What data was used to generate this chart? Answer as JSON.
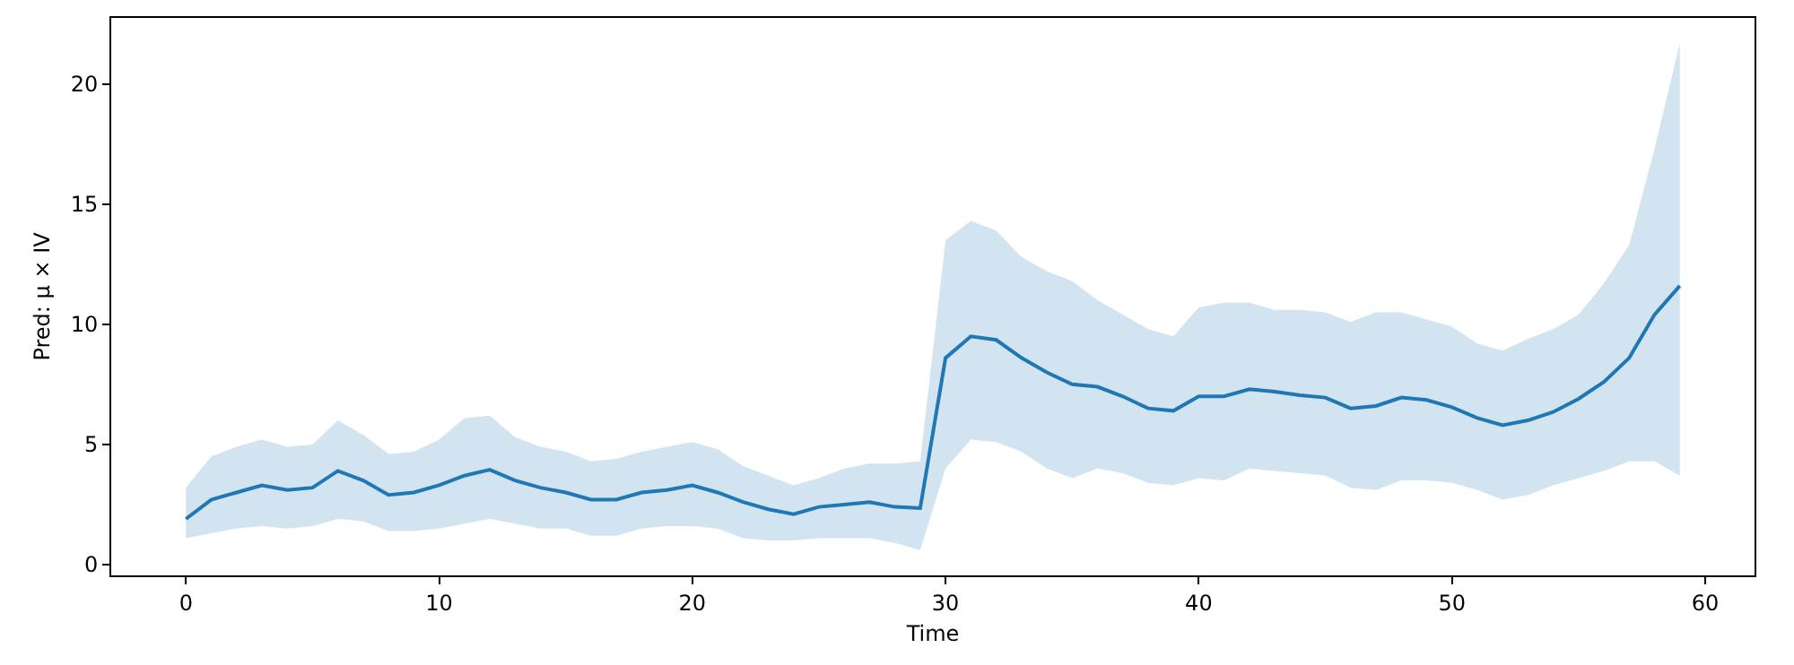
{
  "chart_data": {
    "type": "line",
    "xlabel": "Time",
    "ylabel": "Pred: µ × IV",
    "x": [
      0,
      1,
      2,
      3,
      4,
      5,
      6,
      7,
      8,
      9,
      10,
      11,
      12,
      13,
      14,
      15,
      16,
      17,
      18,
      19,
      20,
      21,
      22,
      23,
      24,
      25,
      26,
      27,
      28,
      29,
      30,
      31,
      32,
      33,
      34,
      35,
      36,
      37,
      38,
      39,
      40,
      41,
      42,
      43,
      44,
      45,
      46,
      47,
      48,
      49,
      50,
      51,
      52,
      53,
      54,
      55,
      56,
      57,
      58,
      59
    ],
    "series": [
      {
        "color": "#1f77b4",
        "values": [
          1.9,
          2.7,
          3.0,
          3.3,
          3.1,
          3.2,
          3.9,
          3.5,
          2.9,
          3.0,
          3.3,
          3.7,
          3.95,
          3.5,
          3.2,
          3.0,
          2.7,
          2.7,
          3.0,
          3.1,
          3.3,
          3.0,
          2.6,
          2.3,
          2.1,
          2.4,
          2.5,
          2.6,
          2.4,
          2.35,
          8.6,
          9.5,
          9.35,
          8.6,
          8.0,
          7.5,
          7.4,
          7.0,
          6.5,
          6.4,
          7.0,
          7.0,
          7.3,
          7.2,
          7.05,
          6.95,
          6.5,
          6.6,
          6.95,
          6.85,
          6.55,
          6.1,
          5.8,
          6.0,
          6.35,
          6.9,
          7.6,
          8.6,
          10.4,
          11.6
        ],
        "upper": [
          3.2,
          4.5,
          4.9,
          5.2,
          4.9,
          5.0,
          6.0,
          5.4,
          4.6,
          4.7,
          5.2,
          6.1,
          6.2,
          5.3,
          4.9,
          4.7,
          4.3,
          4.4,
          4.7,
          4.9,
          5.1,
          4.8,
          4.1,
          3.7,
          3.3,
          3.6,
          4.0,
          4.2,
          4.2,
          4.3,
          13.5,
          14.3,
          13.9,
          12.8,
          12.2,
          11.8,
          11.0,
          10.4,
          9.8,
          9.5,
          10.7,
          10.9,
          10.9,
          10.6,
          10.6,
          10.5,
          10.1,
          10.5,
          10.5,
          10.2,
          9.9,
          9.2,
          8.9,
          9.4,
          9.8,
          10.4,
          11.7,
          13.3,
          17.3,
          21.7
        ],
        "lower": [
          1.1,
          1.3,
          1.5,
          1.6,
          1.5,
          1.6,
          1.9,
          1.8,
          1.4,
          1.4,
          1.5,
          1.7,
          1.9,
          1.7,
          1.5,
          1.5,
          1.2,
          1.2,
          1.5,
          1.6,
          1.6,
          1.5,
          1.1,
          1.0,
          1.0,
          1.1,
          1.1,
          1.1,
          0.9,
          0.6,
          4.0,
          5.2,
          5.1,
          4.7,
          4.0,
          3.6,
          4.0,
          3.8,
          3.4,
          3.3,
          3.6,
          3.5,
          4.0,
          3.9,
          3.8,
          3.7,
          3.2,
          3.1,
          3.5,
          3.5,
          3.4,
          3.1,
          2.7,
          2.9,
          3.3,
          3.6,
          3.9,
          4.3,
          4.3,
          3.7
        ]
      }
    ],
    "xlim": [
      -2.95,
      61.95
    ],
    "xticks": [
      0,
      10,
      20,
      30,
      40,
      50,
      60
    ],
    "ylim": [
      -0.45,
      22.75
    ],
    "yticks": [
      0,
      5,
      10,
      15,
      20
    ]
  }
}
